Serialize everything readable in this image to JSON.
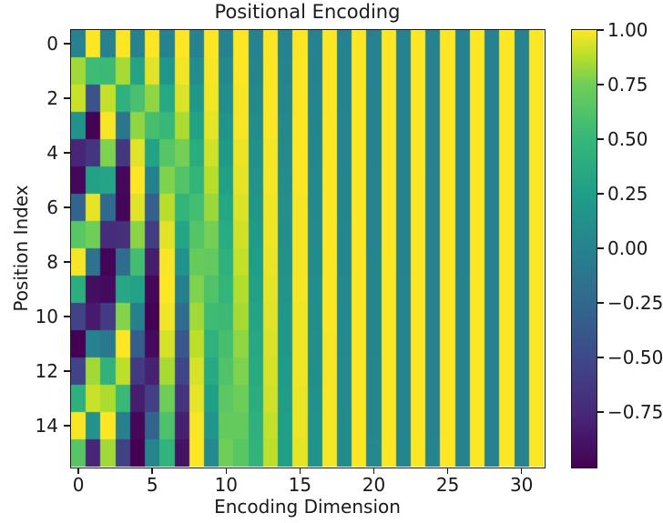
{
  "chart_data": {
    "type": "heatmap",
    "title": "Positional Encoding",
    "xlabel": "Encoding Dimension",
    "ylabel": "Position Index",
    "rows": 16,
    "cols": 32,
    "x_ticks": [
      0,
      5,
      10,
      15,
      20,
      25,
      30
    ],
    "y_ticks": [
      0,
      2,
      4,
      6,
      8,
      10,
      12,
      14
    ],
    "vmin": -1,
    "vmax": 1,
    "grid": false,
    "colormap": {
      "name": "viridis",
      "stops": [
        [
          0.0,
          "#440154"
        ],
        [
          0.125,
          "#482878"
        ],
        [
          0.25,
          "#3e4989"
        ],
        [
          0.375,
          "#31688e"
        ],
        [
          0.5,
          "#26828e"
        ],
        [
          0.625,
          "#1f9e89"
        ],
        [
          0.75,
          "#35b779"
        ],
        [
          0.875,
          "#6ece58"
        ],
        [
          0.9375,
          "#b5de2b"
        ],
        [
          1.0,
          "#fde725"
        ]
      ]
    },
    "colorbar_ticks": [
      {
        "value": 1.0,
        "label": "1.00"
      },
      {
        "value": 0.75,
        "label": "0.75"
      },
      {
        "value": 0.5,
        "label": "0.50"
      },
      {
        "value": 0.25,
        "label": "0.25"
      },
      {
        "value": 0.0,
        "label": "0.00"
      },
      {
        "value": -0.25,
        "label": "−0.25"
      },
      {
        "value": -0.5,
        "label": "−0.50"
      },
      {
        "value": -0.75,
        "label": "−0.75"
      }
    ],
    "values": [
      [
        0,
        1,
        0,
        1,
        0,
        1,
        0,
        1,
        0,
        1,
        0,
        1,
        0,
        1,
        0,
        1,
        0,
        1,
        0,
        1,
        0,
        1,
        0,
        1,
        0,
        1,
        0,
        1,
        0,
        1,
        0,
        1
      ],
      [
        0.84,
        0.54,
        0.53,
        0.85,
        0.31,
        0.95,
        0.18,
        0.98,
        0.1,
        0.99,
        0.06,
        1.0,
        0.03,
        1.0,
        0.02,
        1.0,
        0.01,
        1.0,
        0.01,
        1.0,
        0.0,
        1.0,
        0.0,
        1.0,
        0.0,
        1.0,
        0.0,
        1.0,
        0.0,
        1.0,
        0.0,
        1.0
      ],
      [
        0.91,
        -0.42,
        0.9,
        0.43,
        0.59,
        0.81,
        0.35,
        0.94,
        0.2,
        0.98,
        0.11,
        0.99,
        0.06,
        1.0,
        0.04,
        1.0,
        0.02,
        1.0,
        0.01,
        1.0,
        0.01,
        1.0,
        0.0,
        1.0,
        0.0,
        1.0,
        0.0,
        1.0,
        0.0,
        1.0,
        0.0,
        1.0
      ],
      [
        0.14,
        -0.99,
        0.99,
        -0.12,
        0.81,
        0.58,
        0.51,
        0.86,
        0.3,
        0.96,
        0.17,
        0.99,
        0.09,
        1.0,
        0.05,
        1.0,
        0.03,
        1.0,
        0.02,
        1.0,
        0.01,
        1.0,
        0.01,
        1.0,
        0.0,
        1.0,
        0.0,
        1.0,
        0.0,
        1.0,
        0.0,
        1.0
      ],
      [
        -0.76,
        -0.65,
        0.78,
        -0.63,
        0.95,
        0.3,
        0.65,
        0.76,
        0.39,
        0.92,
        0.22,
        0.97,
        0.13,
        0.99,
        0.07,
        1.0,
        0.04,
        1.0,
        0.02,
        1.0,
        0.01,
        1.0,
        0.01,
        1.0,
        0.0,
        1.0,
        0.0,
        1.0,
        0.0,
        1.0,
        0.0,
        1.0
      ],
      [
        -0.96,
        0.28,
        0.32,
        -0.95,
        1.0,
        -0.01,
        0.78,
        0.63,
        0.48,
        0.88,
        0.28,
        0.96,
        0.16,
        0.99,
        0.09,
        1.0,
        0.05,
        1.0,
        0.03,
        1.0,
        0.02,
        1.0,
        0.01,
        1.0,
        0.01,
        1.0,
        0.0,
        1.0,
        0.0,
        1.0,
        0.0,
        1.0
      ],
      [
        -0.28,
        0.96,
        -0.23,
        -0.97,
        0.95,
        -0.32,
        0.88,
        0.48,
        0.56,
        0.83,
        0.33,
        0.94,
        0.19,
        0.98,
        0.11,
        0.99,
        0.06,
        1.0,
        0.03,
        1.0,
        0.02,
        1.0,
        0.01,
        1.0,
        0.01,
        1.0,
        0.0,
        1.0,
        0.0,
        1.0,
        0.0,
        1.0
      ],
      [
        0.66,
        0.75,
        -0.71,
        -0.7,
        0.8,
        -0.6,
        0.95,
        0.32,
        0.64,
        0.76,
        0.38,
        0.92,
        0.22,
        0.98,
        0.12,
        0.99,
        0.07,
        1.0,
        0.04,
        1.0,
        0.02,
        1.0,
        0.01,
        1.0,
        0.01,
        1.0,
        0.0,
        1.0,
        0.0,
        1.0,
        0.0,
        1.0
      ],
      [
        0.99,
        -0.15,
        -0.98,
        -0.21,
        0.57,
        -0.82,
        0.99,
        0.15,
        0.72,
        0.7,
        0.43,
        0.9,
        0.25,
        0.97,
        0.14,
        0.99,
        0.08,
        1.0,
        0.04,
        1.0,
        0.03,
        1.0,
        0.01,
        1.0,
        0.01,
        1.0,
        0.0,
        1.0,
        0.0,
        1.0,
        0.0,
        1.0
      ],
      [
        0.41,
        -0.91,
        -0.94,
        0.34,
        0.29,
        -0.96,
        1.0,
        -0.03,
        0.78,
        0.62,
        0.48,
        0.87,
        0.28,
        0.96,
        0.16,
        0.99,
        0.09,
        1.0,
        0.05,
        1.0,
        0.03,
        1.0,
        0.02,
        1.0,
        0.01,
        1.0,
        0.01,
        1.0,
        0.0,
        1.0,
        0.0,
        1.0
      ],
      [
        -0.54,
        -0.84,
        -0.61,
        0.79,
        -0.02,
        -1.0,
        0.98,
        -0.21,
        0.84,
        0.54,
        0.53,
        0.85,
        0.31,
        0.95,
        0.18,
        0.98,
        0.1,
        1.0,
        0.06,
        1.0,
        0.03,
        1.0,
        0.02,
        1.0,
        0.01,
        1.0,
        0.01,
        1.0,
        0.0,
        1.0,
        0.0,
        1.0
      ],
      [
        -1.0,
        0.0,
        -0.1,
        1.0,
        -0.33,
        -0.94,
        0.93,
        -0.38,
        0.89,
        0.45,
        0.58,
        0.81,
        0.34,
        0.94,
        0.19,
        0.98,
        0.11,
        0.99,
        0.06,
        1.0,
        0.03,
        1.0,
        0.02,
        1.0,
        0.01,
        1.0,
        0.01,
        1.0,
        0.0,
        1.0,
        0.0,
        1.0
      ],
      [
        -0.54,
        0.84,
        0.45,
        0.89,
        -0.61,
        -0.79,
        0.85,
        -0.53,
        0.93,
        0.36,
        0.62,
        0.78,
        0.37,
        0.93,
        0.21,
        0.98,
        0.12,
        0.99,
        0.07,
        1.0,
        0.04,
        1.0,
        0.02,
        1.0,
        0.01,
        1.0,
        0.01,
        1.0,
        0.0,
        1.0,
        0.0,
        1.0
      ],
      [
        0.42,
        0.91,
        0.86,
        0.52,
        -0.82,
        -0.57,
        0.74,
        -0.67,
        0.96,
        0.27,
        0.67,
        0.74,
        0.4,
        0.92,
        0.23,
        0.97,
        0.13,
        0.99,
        0.07,
        1.0,
        0.04,
        1.0,
        0.02,
        1.0,
        0.01,
        1.0,
        0.01,
        1.0,
        0.0,
        1.0,
        0.0,
        1.0
      ],
      [
        0.99,
        0.14,
        1.0,
        -0.02,
        -0.96,
        -0.28,
        0.61,
        -0.8,
        0.99,
        0.17,
        0.71,
        0.71,
        0.43,
        0.9,
        0.25,
        0.97,
        0.14,
        0.99,
        0.08,
        1.0,
        0.04,
        1.0,
        0.02,
        1.0,
        0.01,
        1.0,
        0.01,
        1.0,
        0.0,
        1.0,
        0.0,
        1.0
      ],
      [
        0.65,
        -0.76,
        0.84,
        -0.55,
        -1.0,
        0.03,
        0.46,
        -0.89,
        1.0,
        0.07,
        0.75,
        0.66,
        0.46,
        0.89,
        0.26,
        0.96,
        0.15,
        0.99,
        0.08,
        1.0,
        0.05,
        1.0,
        0.03,
        1.0,
        0.02,
        1.0,
        0.01,
        1.0,
        0.0,
        1.0,
        0.0,
        1.0
      ]
    ]
  }
}
